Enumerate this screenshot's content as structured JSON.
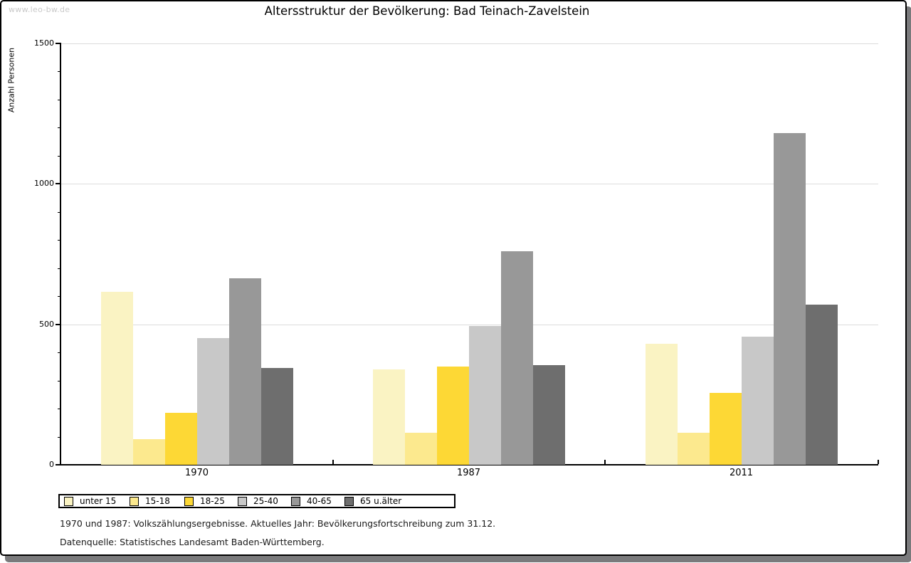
{
  "watermark": "www.leo-bw.de",
  "title": "Altersstruktur der Bevölkerung: Bad Teinach-Zavelstein",
  "footnotes": {
    "line1": "1970 und 1987: Volkszählungsergebnisse. Aktuelles Jahr: Bevölkerungsfortschreibung zum 31.12.",
    "line2": "Datenquelle: Statistisches Landesamt Baden-Württemberg."
  },
  "colors": {
    "axis": "#000000",
    "gridline": "#dcdcdc",
    "watermark": "#c9c9c9",
    "frame_shadow": "#7a7a7c"
  },
  "chart_data": {
    "type": "bar",
    "title": "Altersstruktur der Bevölkerung: Bad Teinach-Zavelstein",
    "xlabel": "",
    "ylabel": "Anzahl Personen",
    "ylim": [
      0,
      1500
    ],
    "ytick_labels": [
      "0",
      "500",
      "1000",
      "1500"
    ],
    "ytick_major": 500,
    "ytick_minor": 100,
    "grid": "horizontal gridlines at 500, 1000, 1500",
    "legend_position": "bottom-left boxed",
    "categories": [
      "1970",
      "1987",
      "2011"
    ],
    "series": [
      {
        "name": "unter 15",
        "color": "#faf3c3",
        "values": [
          615,
          340,
          430
        ]
      },
      {
        "name": "15-18",
        "color": "#fce98e",
        "values": [
          90,
          115,
          115
        ]
      },
      {
        "name": "18-25",
        "color": "#fdd835",
        "values": [
          185,
          350,
          255
        ]
      },
      {
        "name": "25-40",
        "color": "#c8c8c8",
        "values": [
          450,
          495,
          455
        ]
      },
      {
        "name": "40-65",
        "color": "#989898",
        "values": [
          665,
          760,
          1180
        ]
      },
      {
        "name": "65 u.älter",
        "color": "#6e6e6e",
        "values": [
          345,
          355,
          570
        ]
      }
    ]
  }
}
